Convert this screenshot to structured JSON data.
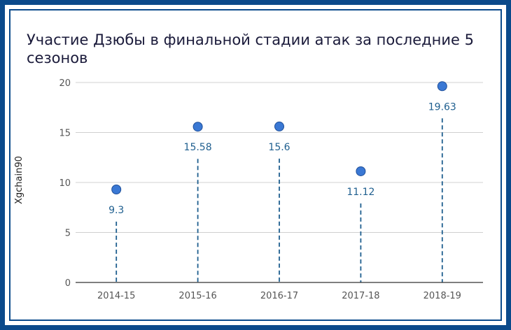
{
  "chart_data": {
    "type": "scatter",
    "title": "Участие Дзюбы в финальной стадии атак за последние 5 сезонов",
    "xlabel": "",
    "ylabel": "Xgchain90",
    "categories": [
      "2014-15",
      "2015-16",
      "2016-17",
      "2017-18",
      "2018-19"
    ],
    "values": [
      9.3,
      15.58,
      15.6,
      11.12,
      19.63
    ],
    "data_labels": [
      "9.3",
      "15.58",
      "15.6",
      "11.12",
      "19.63"
    ],
    "ylim": [
      0,
      20
    ],
    "yticks": [
      "0",
      "5",
      "10",
      "15",
      "20"
    ],
    "grid": true,
    "legend": "none",
    "colors": {
      "point": "#3a78d4",
      "stem": "#1f5f8f",
      "label": "#1f5f8f",
      "frame": "#0b4a8b"
    }
  }
}
